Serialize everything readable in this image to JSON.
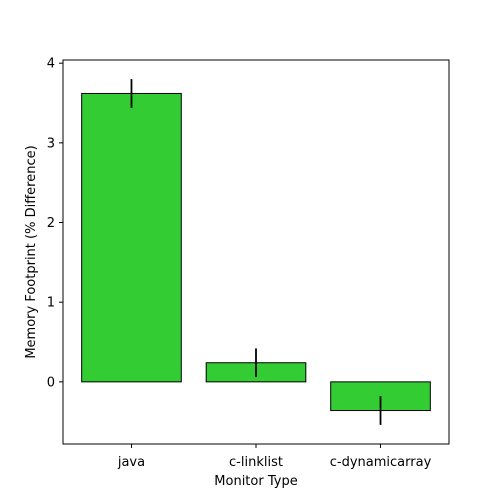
{
  "chart_data": {
    "type": "bar",
    "categories": [
      "java",
      "c-linklist",
      "c-dynamicarray"
    ],
    "values": [
      3.62,
      0.24,
      -0.36
    ],
    "errors": [
      0.18,
      0.18,
      0.18
    ],
    "xlabel": "Monitor Type",
    "ylabel": "Memory Footprint (% Difference)",
    "ylim": [
      -0.78,
      4.04
    ],
    "yticks": [
      0,
      1,
      2,
      3,
      4
    ],
    "grid": false,
    "bar_color": "#33cc33",
    "edge_color": "#000000"
  }
}
